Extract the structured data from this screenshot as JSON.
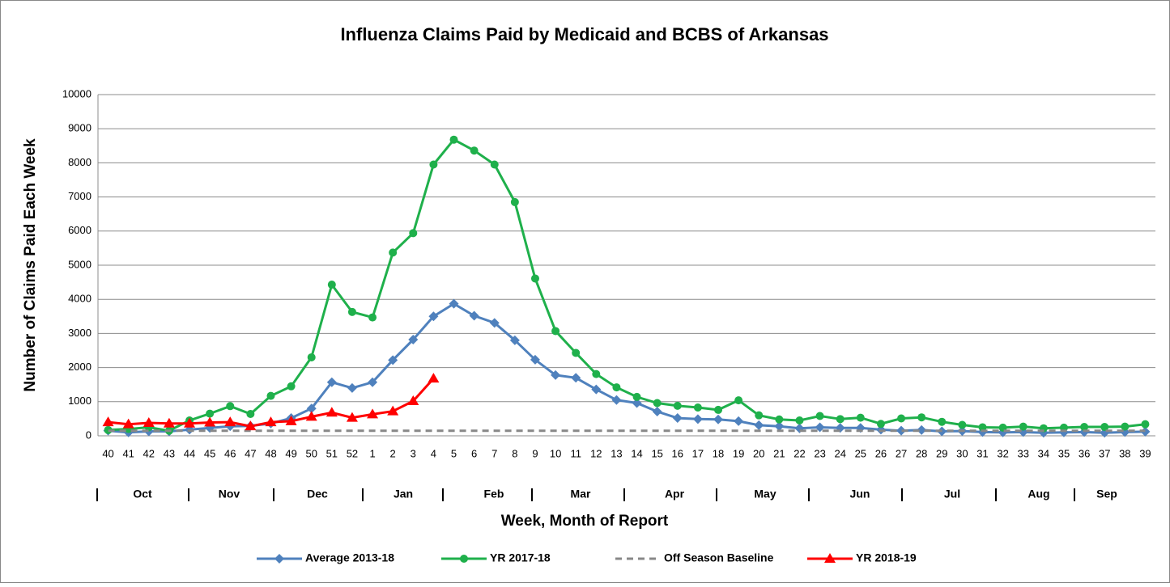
{
  "chart_data": {
    "type": "line",
    "title": "Influenza Claims Paid by Medicaid and BCBS of Arkansas",
    "y_label": "Number of Claims Paid Each Week",
    "x_label": "Week, Month of Report",
    "categories": [
      "40",
      "41",
      "42",
      "43",
      "44",
      "45",
      "46",
      "47",
      "48",
      "49",
      "50",
      "51",
      "52",
      "1",
      "2",
      "3",
      "4",
      "5",
      "6",
      "7",
      "8",
      "9",
      "10",
      "11",
      "12",
      "13",
      "14",
      "15",
      "16",
      "17",
      "18",
      "19",
      "20",
      "21",
      "22",
      "23",
      "24",
      "25",
      "26",
      "27",
      "28",
      "29",
      "30",
      "31",
      "32",
      "33",
      "34",
      "35",
      "36",
      "37",
      "38",
      "39"
    ],
    "months": [
      "Oct",
      "Nov",
      "Dec",
      "Jan",
      "Feb",
      "Mar",
      "Apr",
      "May",
      "Jun",
      "Jul",
      "Aug",
      "Sep"
    ],
    "ylim": [
      0,
      10000
    ],
    "yticks": [
      0,
      1000,
      2000,
      3000,
      4000,
      5000,
      6000,
      7000,
      8000,
      9000,
      10000
    ],
    "grid": true,
    "legend": "bottom",
    "series": [
      {
        "name": "Average 2013-18",
        "color": "#4f81bd",
        "marker": "diamond",
        "values": [
          150,
          100,
          130,
          130,
          180,
          230,
          280,
          290,
          360,
          520,
          800,
          1570,
          1400,
          1570,
          2220,
          2820,
          3500,
          3870,
          3520,
          3310,
          2800,
          2230,
          1780,
          1700,
          1360,
          1050,
          960,
          710,
          520,
          490,
          480,
          430,
          310,
          280,
          220,
          250,
          230,
          230,
          180,
          150,
          170,
          130,
          140,
          110,
          100,
          110,
          90,
          100,
          110,
          90,
          110,
          120
        ]
      },
      {
        "name": "YR 2017-18",
        "color": "#1fb04b",
        "marker": "circle",
        "values": [
          170,
          200,
          250,
          150,
          450,
          650,
          870,
          640,
          1170,
          1450,
          2300,
          4430,
          3630,
          3470,
          5370,
          5940,
          7950,
          8680,
          8360,
          7950,
          6850,
          4610,
          3070,
          2430,
          1810,
          1420,
          1140,
          960,
          880,
          830,
          760,
          1040,
          600,
          480,
          450,
          580,
          490,
          530,
          350,
          510,
          540,
          410,
          320,
          250,
          240,
          270,
          220,
          240,
          260,
          260,
          270,
          340
        ]
      },
      {
        "name": "Off Season Baseline",
        "color": "#888888",
        "marker": "none",
        "dash": true,
        "values": [
          150,
          150,
          150,
          150,
          150,
          150,
          150,
          150,
          150,
          150,
          150,
          150,
          150,
          150,
          150,
          150,
          150,
          150,
          150,
          150,
          150,
          150,
          150,
          150,
          150,
          150,
          150,
          150,
          150,
          150,
          150,
          150,
          150,
          150,
          150,
          150,
          150,
          150,
          150,
          150,
          150,
          150,
          150,
          150,
          150,
          150,
          150,
          150,
          150,
          150,
          150,
          150
        ]
      },
      {
        "name": "YR 2018-19",
        "color": "#ff0000",
        "marker": "triangle",
        "values": [
          400,
          340,
          380,
          360,
          360,
          390,
          400,
          280,
          400,
          430,
          560,
          680,
          530,
          630,
          720,
          1020,
          1680,
          null,
          null,
          null,
          null,
          null,
          null,
          null,
          null,
          null,
          null,
          null,
          null,
          null,
          null,
          null,
          null,
          null,
          null,
          null,
          null,
          null,
          null,
          null,
          null,
          null,
          null,
          null,
          null,
          null,
          null,
          null,
          null,
          null,
          null,
          null
        ]
      }
    ]
  }
}
